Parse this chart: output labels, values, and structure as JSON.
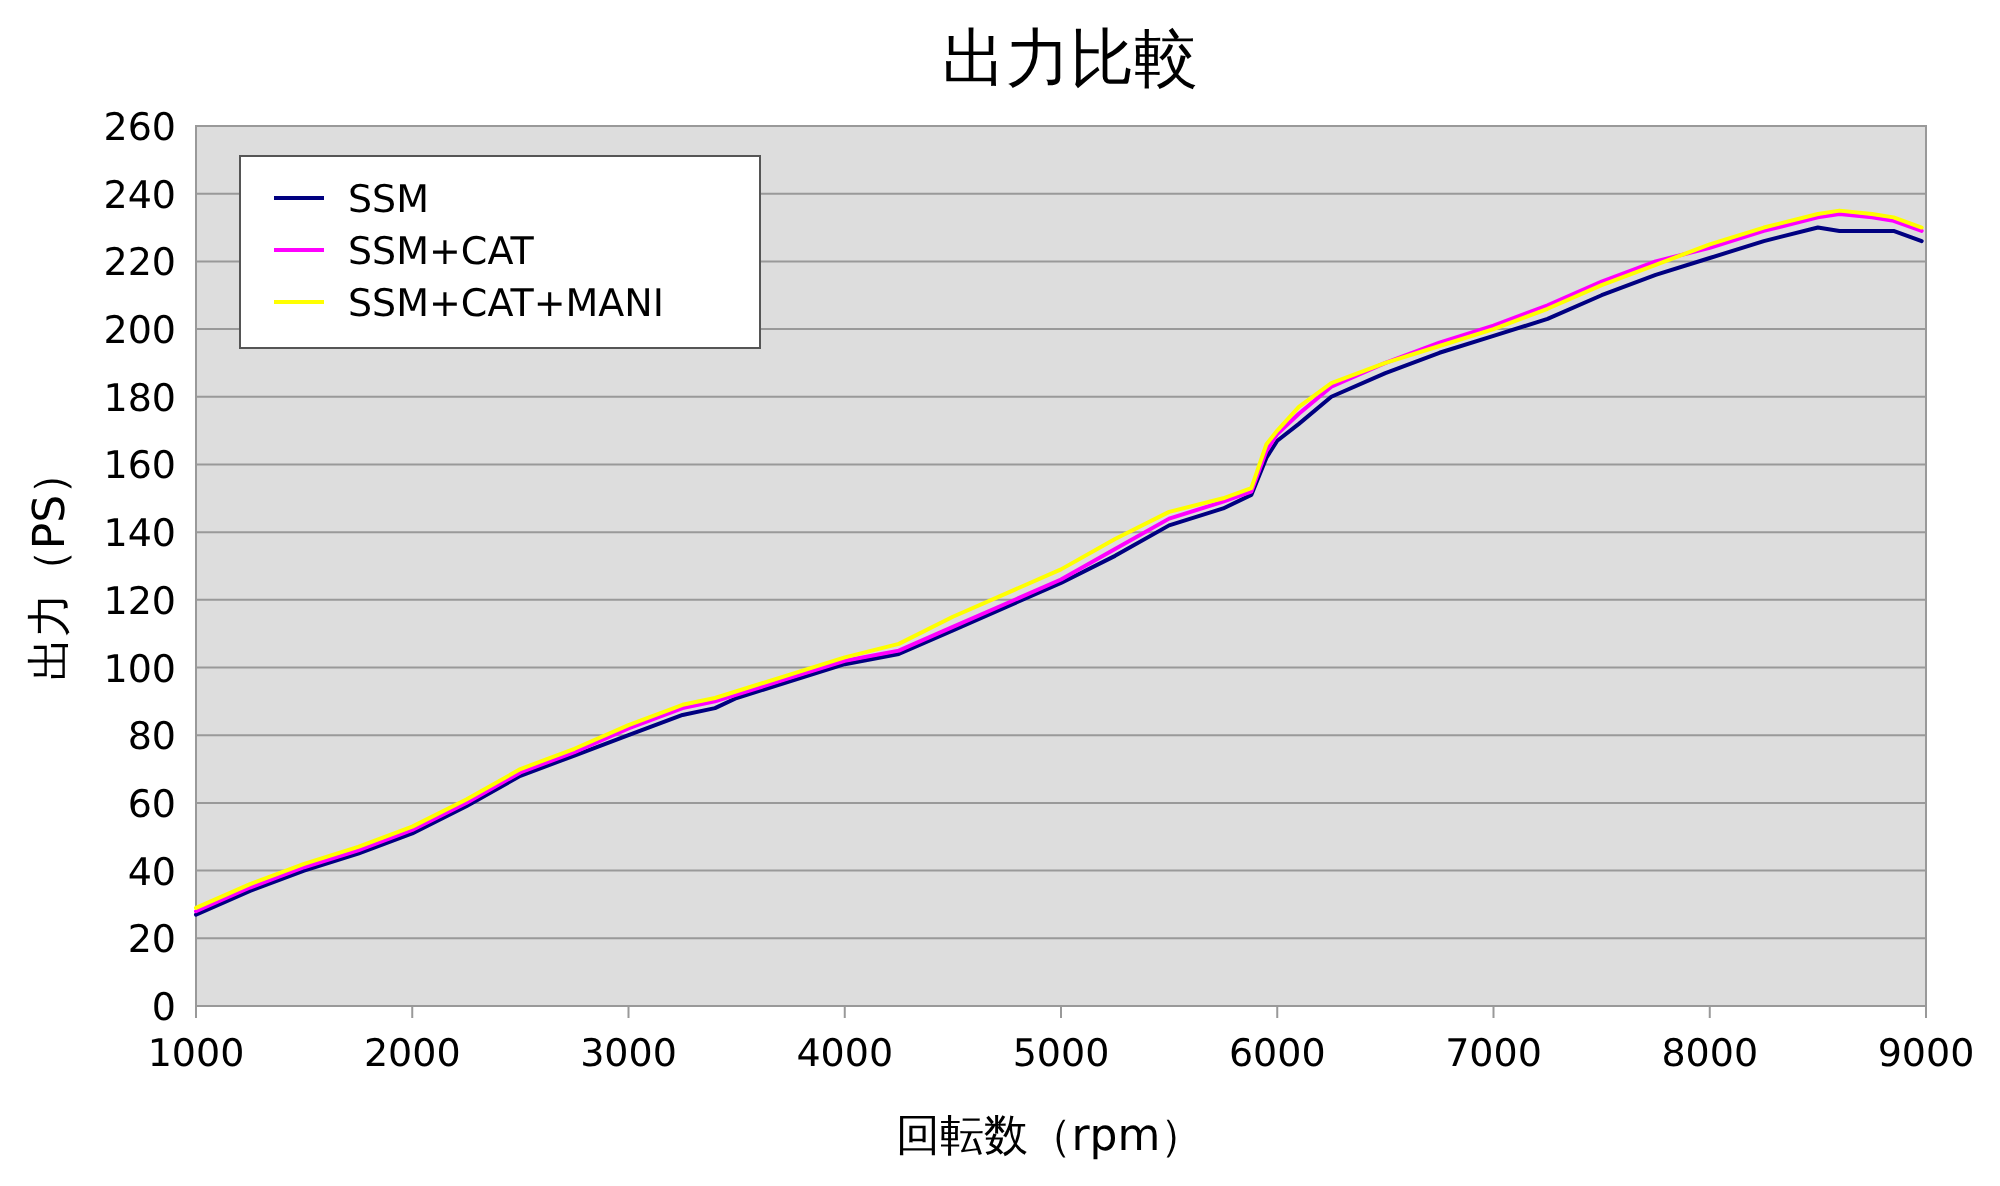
{
  "chart_data": {
    "type": "line",
    "title": "出力比較",
    "xlabel": "回転数（rpm）",
    "ylabel": "出力（PS）",
    "x": [
      1000,
      1250,
      1500,
      1750,
      2000,
      2250,
      2500,
      2750,
      3000,
      3250,
      3400,
      3500,
      3750,
      4000,
      4250,
      4500,
      4750,
      5000,
      5250,
      5500,
      5750,
      5880,
      5950,
      6000,
      6100,
      6250,
      6500,
      6750,
      7000,
      7250,
      7500,
      7750,
      8000,
      8250,
      8500,
      8600,
      8750,
      8850,
      8980
    ],
    "series": [
      {
        "name": "SSM",
        "color": "#000080",
        "values": [
          27,
          34,
          40,
          45,
          51,
          59,
          68,
          74,
          80,
          86,
          88,
          91,
          96,
          101,
          104,
          111,
          118,
          125,
          133,
          142,
          147,
          151,
          162,
          167,
          172,
          180,
          187,
          193,
          198,
          203,
          210,
          216,
          221,
          226,
          230,
          229,
          229,
          229,
          226
        ]
      },
      {
        "name": "SSM+CAT",
        "color": "#ff00ff",
        "values": [
          28,
          35,
          41,
          46,
          52,
          60,
          69,
          75,
          82,
          88,
          90,
          92,
          97,
          102,
          105,
          112,
          119,
          126,
          135,
          144,
          149,
          152,
          164,
          169,
          175,
          183,
          190,
          196,
          201,
          207,
          214,
          220,
          224,
          229,
          233,
          234,
          233,
          232,
          229
        ]
      },
      {
        "name": "SSM+CAT+MANI",
        "color": "#ffff00",
        "values": [
          29,
          36,
          42,
          47,
          53,
          61,
          70,
          76,
          83,
          89,
          91,
          93,
          98,
          103,
          107,
          115,
          122,
          129,
          138,
          146,
          150,
          153,
          166,
          170,
          177,
          184,
          190,
          195,
          200,
          206,
          213,
          219,
          225,
          230,
          234,
          235,
          234,
          233,
          230
        ]
      }
    ],
    "xlim": [
      1000,
      9000
    ],
    "xticks": [
      1000,
      2000,
      3000,
      4000,
      5000,
      6000,
      7000,
      8000,
      9000
    ],
    "ylim": [
      0,
      260
    ],
    "yticks": [
      0,
      20,
      40,
      60,
      80,
      100,
      120,
      140,
      160,
      180,
      200,
      220,
      240,
      260
    ],
    "grid": "y",
    "legend": "top left",
    "marker": "none",
    "line_style": "solid"
  }
}
